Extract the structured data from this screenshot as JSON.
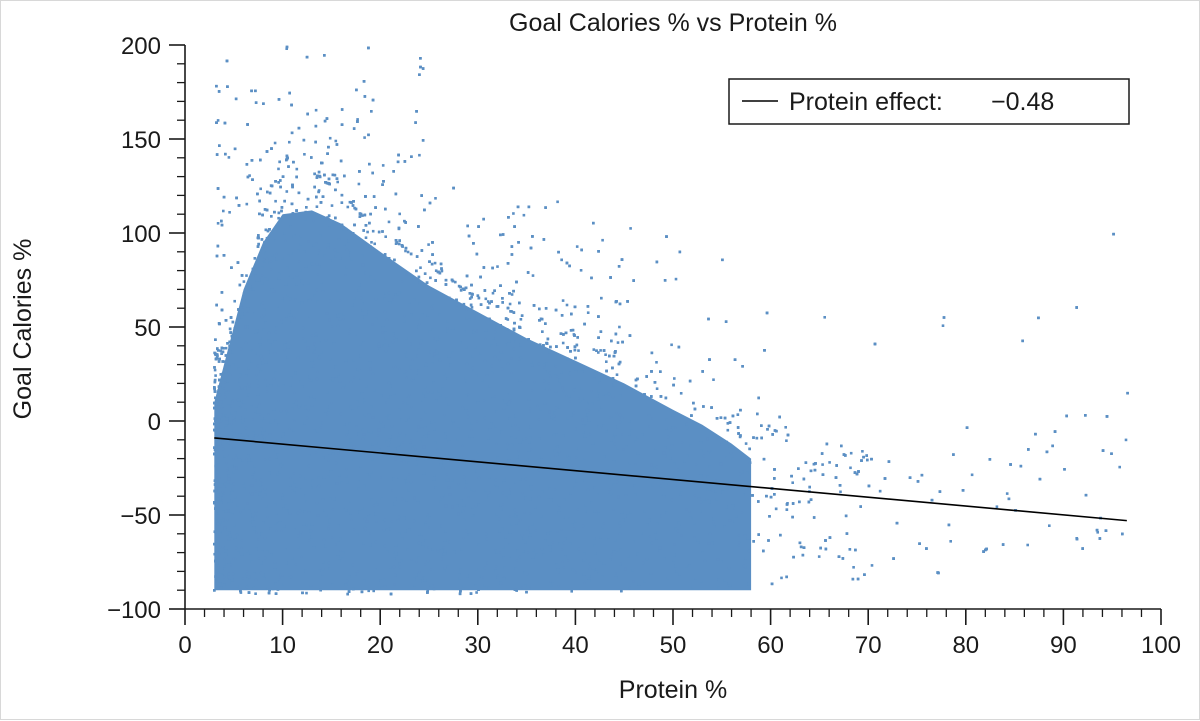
{
  "chart_data": {
    "type": "scatter",
    "title": "Goal Calories % vs Protein %",
    "xlabel": "Protein %",
    "ylabel": "Goal Calories %",
    "xlim": [
      0,
      100
    ],
    "ylim": [
      -100,
      200
    ],
    "x_ticks": [
      0,
      10,
      20,
      30,
      40,
      50,
      60,
      70,
      80,
      90,
      100
    ],
    "y_ticks": [
      -100,
      -50,
      0,
      50,
      100,
      150,
      200
    ],
    "x_tick_labels": [
      "0",
      "10",
      "20",
      "30",
      "40",
      "50",
      "60",
      "70",
      "80",
      "90",
      "100"
    ],
    "y_tick_labels": [
      "−100",
      "−50",
      "0",
      "50",
      "100",
      "150",
      "200"
    ],
    "point_color": "#5b8fc4",
    "line_color": "#000000",
    "grid": false,
    "legend_position": "top-right",
    "legend": {
      "label": "Protein effect:",
      "value": "−0.48"
    },
    "scatter_density": [
      {
        "x": 4,
        "y_min": -92,
        "y_max": 35,
        "density": "high"
      },
      {
        "x": 10,
        "y_min": -92,
        "y_max": 140,
        "density": "high"
      },
      {
        "x": 15,
        "y_min": -93,
        "y_max": 125,
        "density": "high"
      },
      {
        "x": 20,
        "y_min": -93,
        "y_max": 100,
        "density": "high"
      },
      {
        "x": 30,
        "y_min": -92,
        "y_max": 65,
        "density": "high"
      },
      {
        "x": 40,
        "y_min": -91,
        "y_max": 45,
        "density": "high"
      },
      {
        "x": 50,
        "y_min": -90,
        "y_max": 15,
        "density": "medium"
      },
      {
        "x": 60,
        "y_min": -88,
        "y_max": -5,
        "density": "medium"
      },
      {
        "x": 70,
        "y_min": -85,
        "y_max": -20,
        "density": "low"
      },
      {
        "x": 80,
        "y_min": -80,
        "y_max": -30,
        "density": "sparse"
      },
      {
        "x": 96,
        "y_min": -70,
        "y_max": 20,
        "density": "sparse"
      }
    ],
    "series": [
      {
        "name": "Protein effect",
        "type": "line",
        "x": [
          3,
          96.5
        ],
        "y": [
          -9,
          -53
        ]
      }
    ]
  }
}
